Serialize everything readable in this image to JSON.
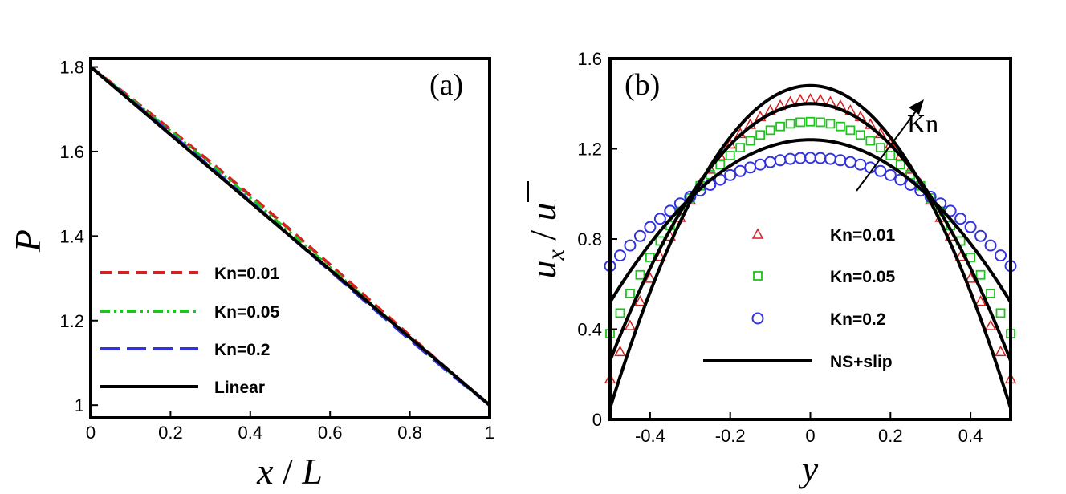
{
  "chart_data": [
    {
      "panel": "(a)",
      "type": "line",
      "xlabel_parts": [
        "x",
        " / ",
        "L"
      ],
      "ylabel": "P",
      "xlim": [
        0,
        1
      ],
      "ylim": [
        0.97,
        1.82
      ],
      "xticks": [
        0,
        0.2,
        0.4,
        0.6,
        0.8,
        1
      ],
      "xtick_labels": [
        "0",
        "0.2",
        "0.4",
        "0.6",
        "0.8",
        "1"
      ],
      "yticks": [
        1.0,
        1.2,
        1.4,
        1.6,
        1.8
      ],
      "ytick_labels": [
        "1",
        "1.2",
        "1.4",
        "1.6",
        "1.8"
      ],
      "legend_position": "bottom-left",
      "x": [
        0,
        0.1,
        0.2,
        0.3,
        0.4,
        0.5,
        0.6,
        0.7,
        0.8,
        0.9,
        1.0
      ],
      "series": [
        {
          "name": "Kn=0.01",
          "style": "dashed",
          "color": "#d42020",
          "values": [
            1.8,
            1.727,
            1.652,
            1.575,
            1.496,
            1.415,
            1.332,
            1.248,
            1.164,
            1.08,
            1.0
          ]
        },
        {
          "name": "Kn=0.05",
          "style": "dashdotdot",
          "color": "#1ec41e",
          "values": [
            1.8,
            1.725,
            1.648,
            1.57,
            1.49,
            1.408,
            1.325,
            1.242,
            1.159,
            1.078,
            1.0
          ]
        },
        {
          "name": "Kn=0.2",
          "style": "longdash",
          "color": "#3333dd",
          "values": [
            1.8,
            1.722,
            1.643,
            1.563,
            1.482,
            1.4,
            1.318,
            1.236,
            1.155,
            1.076,
            1.0
          ]
        },
        {
          "name": "Linear",
          "style": "solid",
          "color": "#000000",
          "values": [
            1.8,
            1.72,
            1.64,
            1.56,
            1.48,
            1.4,
            1.32,
            1.24,
            1.16,
            1.08,
            1.0
          ]
        }
      ]
    },
    {
      "panel": "(b)",
      "type": "scatter",
      "xlabel": "y",
      "ylabel_parts": [
        "u",
        "x",
        " / ",
        "u"
      ],
      "xlim": [
        -0.5,
        0.5
      ],
      "ylim": [
        0,
        1.6
      ],
      "xticks": [
        -0.4,
        -0.2,
        0,
        0.2,
        0.4
      ],
      "xtick_labels": [
        "-0.4",
        "-0.2",
        "0",
        "0.2",
        "0.4"
      ],
      "yticks": [
        0,
        0.4,
        0.8,
        1.2,
        1.6
      ],
      "ytick_labels": [
        "0",
        "0.4",
        "0.8",
        "1.2",
        "1.6"
      ],
      "legend_position": "bottom-center",
      "annotation": "Kn",
      "series": [
        {
          "name": "Kn=0.01",
          "marker": "triangle",
          "color": "#d42020",
          "center": 1.42,
          "wall": 0.18,
          "n_points": 41
        },
        {
          "name": "Kn=0.05",
          "marker": "square",
          "color": "#1ec41e",
          "center": 1.32,
          "wall": 0.38,
          "n_points": 41
        },
        {
          "name": "Kn=0.2",
          "marker": "circle",
          "color": "#3333dd",
          "center": 1.16,
          "wall": 0.68,
          "n_points": 41
        },
        {
          "name": "NS+slip",
          "marker": "line",
          "color": "#000000",
          "curves": [
            {
              "center": 1.48,
              "wall": 0.05
            },
            {
              "center": 1.4,
              "wall": 0.26
            },
            {
              "center": 1.24,
              "wall": 0.52
            }
          ]
        }
      ]
    }
  ]
}
